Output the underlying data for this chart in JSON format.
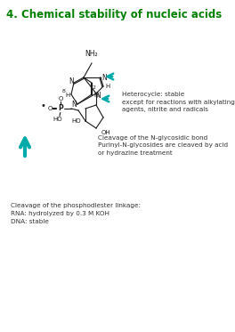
{
  "title": "4. Chemical stability of nucleic acids",
  "title_color": "#008000",
  "title_fontsize": 8.5,
  "bg_color": "#ffffff",
  "heterocycle_text": "Heterocycle: stable\nexcept for reactions with alkylating\nagents, nitrite and radicals",
  "glycosidic_text": "Cleavage of the N-glycosidic bond\nPurinyl-N-glycosides are cleaved by acid\nor hydrazine treatment",
  "phosphodiester_text": "Cleavage of the phosphodiester linkage:\nRNA: hydrolyzed by 0.3 M KOH\nDNA: stable",
  "arrow_color": "#00aaaa",
  "structure_color": "#1a1a1a",
  "text_color": "#333333",
  "text_fontsize": 5.2
}
